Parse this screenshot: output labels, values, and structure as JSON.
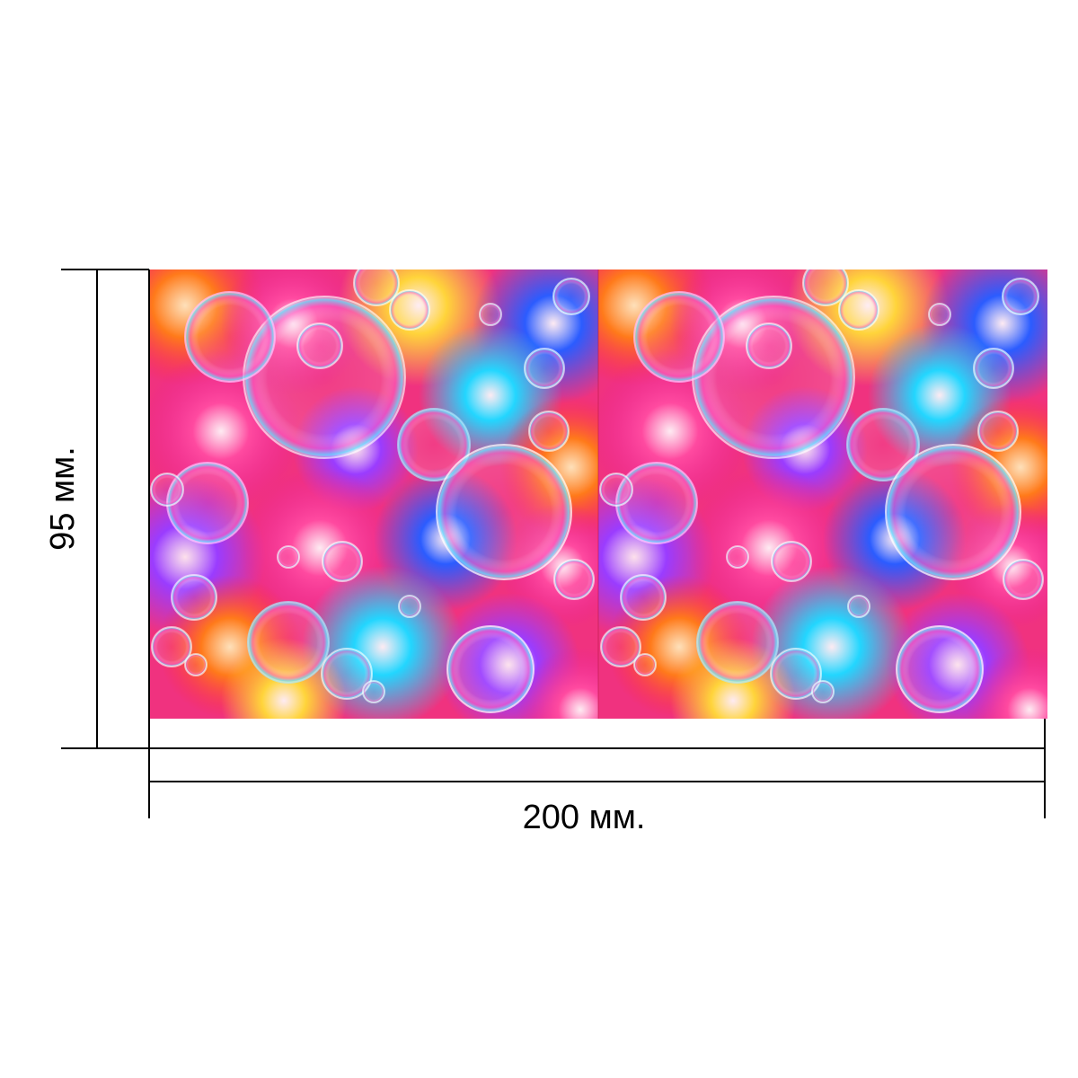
{
  "dimensions": {
    "width_label": "200 мм.",
    "height_label": "95 мм."
  },
  "pattern": {
    "description_icon": "bubbles-pattern",
    "panel_count": 2,
    "colors": {
      "magenta": "#e8209a",
      "pink": "#ff4aa0",
      "blue": "#2b5cff",
      "cyan": "#22d6ff",
      "yellow": "#ffd43a",
      "orange": "#ff7a1a",
      "red": "#ff2a3a",
      "violet": "#9a3cff"
    }
  },
  "line_color": "#000000"
}
